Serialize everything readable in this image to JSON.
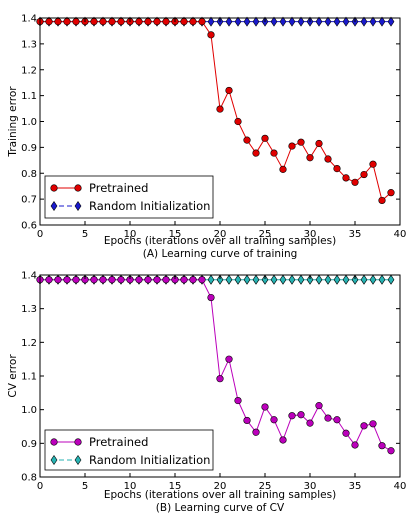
{
  "chart_data": [
    {
      "type": "line",
      "ylabel": "Training error",
      "xlabel": "Epochs (iterations over all training samples)",
      "caption": "(A) Learning curve of training",
      "xlim": [
        0,
        40
      ],
      "ylim": [
        0.6,
        1.4
      ],
      "xticks": [
        "0",
        "5",
        "10",
        "15",
        "20",
        "25",
        "30",
        "35",
        "40"
      ],
      "yticks": [
        "0.6",
        "0.7",
        "0.8",
        "0.9",
        "1.0",
        "1.1",
        "1.2",
        "1.3",
        "1.4"
      ],
      "legend_position": "lower-left",
      "grid": false,
      "series": [
        {
          "name": "Pretrained",
          "color": "#e00000",
          "marker": "circle",
          "x": [
            0,
            1,
            2,
            3,
            4,
            5,
            6,
            7,
            8,
            9,
            10,
            11,
            12,
            13,
            14,
            15,
            16,
            17,
            18,
            19,
            20,
            21,
            22,
            23,
            24,
            25,
            26,
            27,
            28,
            29,
            30,
            31,
            32,
            33,
            34,
            35,
            36,
            37,
            38,
            39
          ],
          "values": [
            1.386,
            1.386,
            1.386,
            1.386,
            1.386,
            1.386,
            1.386,
            1.386,
            1.386,
            1.386,
            1.386,
            1.386,
            1.386,
            1.386,
            1.386,
            1.386,
            1.386,
            1.386,
            1.386,
            1.335,
            1.048,
            1.12,
            1.0,
            0.928,
            0.878,
            0.935,
            0.878,
            0.815,
            0.905,
            0.92,
            0.86,
            0.915,
            0.855,
            0.818,
            0.782,
            0.765,
            0.795,
            0.835,
            0.695,
            0.725
          ]
        },
        {
          "name": "Random Initialization",
          "color": "#1a1acc",
          "marker": "diamond",
          "x": [
            0,
            1,
            2,
            3,
            4,
            5,
            6,
            7,
            8,
            9,
            10,
            11,
            12,
            13,
            14,
            15,
            16,
            17,
            18,
            19,
            20,
            21,
            22,
            23,
            24,
            25,
            26,
            27,
            28,
            29,
            30,
            31,
            32,
            33,
            34,
            35,
            36,
            37,
            38,
            39
          ],
          "values": [
            1.386,
            1.386,
            1.386,
            1.386,
            1.386,
            1.386,
            1.386,
            1.386,
            1.386,
            1.386,
            1.386,
            1.386,
            1.386,
            1.386,
            1.386,
            1.386,
            1.386,
            1.386,
            1.386,
            1.386,
            1.386,
            1.386,
            1.386,
            1.386,
            1.386,
            1.386,
            1.386,
            1.386,
            1.386,
            1.386,
            1.386,
            1.386,
            1.386,
            1.386,
            1.386,
            1.386,
            1.386,
            1.386,
            1.386,
            1.386
          ]
        }
      ]
    },
    {
      "type": "line",
      "ylabel": "CV error",
      "xlabel": "Epochs (iterations over all training samples)",
      "caption": "(B) Learning curve of CV",
      "xlim": [
        0,
        40
      ],
      "ylim": [
        0.8,
        1.4
      ],
      "xticks": [
        "0",
        "5",
        "10",
        "15",
        "20",
        "25",
        "30",
        "35",
        "40"
      ],
      "yticks": [
        "0.8",
        "0.9",
        "1.0",
        "1.1",
        "1.2",
        "1.3",
        "1.4"
      ],
      "legend_position": "lower-left",
      "grid": false,
      "series": [
        {
          "name": "Pretrained",
          "color": "#bb00bb",
          "marker": "circle",
          "x": [
            0,
            1,
            2,
            3,
            4,
            5,
            6,
            7,
            8,
            9,
            10,
            11,
            12,
            13,
            14,
            15,
            16,
            17,
            18,
            19,
            20,
            21,
            22,
            23,
            24,
            25,
            26,
            27,
            28,
            29,
            30,
            31,
            32,
            33,
            34,
            35,
            36,
            37,
            38,
            39
          ],
          "values": [
            1.386,
            1.386,
            1.386,
            1.386,
            1.386,
            1.386,
            1.386,
            1.386,
            1.386,
            1.386,
            1.386,
            1.386,
            1.386,
            1.386,
            1.386,
            1.386,
            1.386,
            1.386,
            1.386,
            1.333,
            1.092,
            1.15,
            1.027,
            0.968,
            0.933,
            1.008,
            0.97,
            0.91,
            0.982,
            0.985,
            0.96,
            1.012,
            0.975,
            0.97,
            0.93,
            0.895,
            0.952,
            0.958,
            0.893,
            0.878
          ]
        },
        {
          "name": "Random Initialization",
          "color": "#27b3b3",
          "marker": "diamond",
          "x": [
            0,
            1,
            2,
            3,
            4,
            5,
            6,
            7,
            8,
            9,
            10,
            11,
            12,
            13,
            14,
            15,
            16,
            17,
            18,
            19,
            20,
            21,
            22,
            23,
            24,
            25,
            26,
            27,
            28,
            29,
            30,
            31,
            32,
            33,
            34,
            35,
            36,
            37,
            38,
            39
          ],
          "values": [
            1.386,
            1.386,
            1.386,
            1.386,
            1.386,
            1.386,
            1.386,
            1.386,
            1.386,
            1.386,
            1.386,
            1.386,
            1.386,
            1.386,
            1.386,
            1.386,
            1.386,
            1.386,
            1.386,
            1.386,
            1.386,
            1.386,
            1.386,
            1.386,
            1.386,
            1.386,
            1.386,
            1.386,
            1.386,
            1.386,
            1.386,
            1.386,
            1.386,
            1.386,
            1.386,
            1.386,
            1.386,
            1.386,
            1.386,
            1.386
          ]
        }
      ]
    }
  ]
}
